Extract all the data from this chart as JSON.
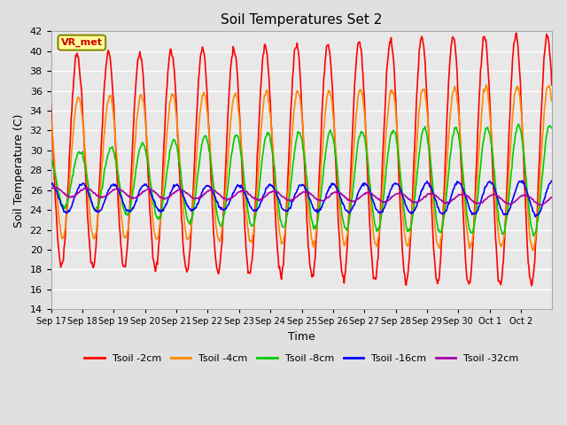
{
  "title": "Soil Temperatures Set 2",
  "xlabel": "Time",
  "ylabel": "Soil Temperature (C)",
  "ylim": [
    14,
    42
  ],
  "yticks": [
    14,
    16,
    18,
    20,
    22,
    24,
    26,
    28,
    30,
    32,
    34,
    36,
    38,
    40,
    42
  ],
  "annotation_text": "VR_met",
  "annotation_color": "#cc0000",
  "annotation_bg": "#ffff99",
  "annotation_border": "#888800",
  "bg_color": "#e0e0e0",
  "plot_bg": "#e8e8e8",
  "grid_color": "white",
  "lines": [
    {
      "label": "Tsoil -2cm",
      "color": "#ff0000",
      "lw": 1.2
    },
    {
      "label": "Tsoil -4cm",
      "color": "#ff8800",
      "lw": 1.2
    },
    {
      "label": "Tsoil -8cm",
      "color": "#00cc00",
      "lw": 1.2
    },
    {
      "label": "Tsoil -16cm",
      "color": "#0000ff",
      "lw": 1.2
    },
    {
      "label": "Tsoil -32cm",
      "color": "#aa00aa",
      "lw": 1.2
    }
  ],
  "x_tick_labels": [
    "Sep 17",
    "Sep 18",
    "Sep 19",
    "Sep 20",
    "Sep 21",
    "Sep 22",
    "Sep 23",
    "Sep 24",
    "Sep 25",
    "Sep 26",
    "Sep 27",
    "Sep 28",
    "Sep 29",
    "Sep 30",
    "Oct 1",
    "Oct 2"
  ],
  "x_tick_positions": [
    0,
    1,
    2,
    3,
    4,
    5,
    6,
    7,
    8,
    9,
    10,
    11,
    12,
    13,
    14,
    15
  ],
  "n_days": 16,
  "pts_per_day": 48
}
